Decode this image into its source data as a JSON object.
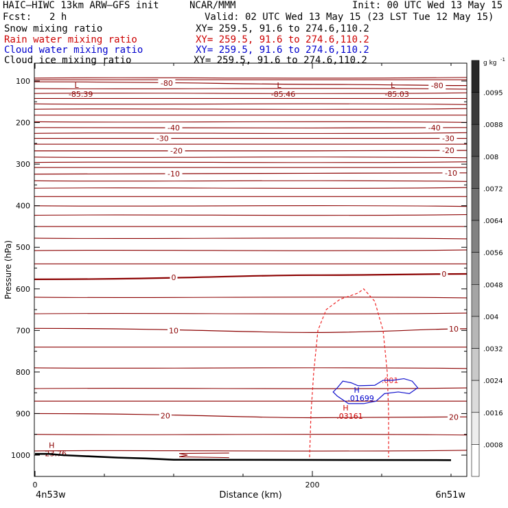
{
  "header": {
    "model": "HAIC–HIWC 13km ARW–GFS init",
    "org": "NCAR/MMM",
    "init": "Init: 00 UTC Wed 13 May 15",
    "fcst_label": "Fcst:",
    "fcst_value": "2 h",
    "valid": "Valid: 02 UTC Wed 13 May 15 (23 LST Tue 12 May 15)",
    "fields": [
      {
        "name": "Snow mixing ratio",
        "xy": "XY= 259.5, 91.6 to 274.6,110.2",
        "color": "#000000"
      },
      {
        "name": "Rain water mixing ratio",
        "xy": "XY= 259.5, 91.6 to 274.6,110.2",
        "color": "#cc0000"
      },
      {
        "name": "Cloud water mixing ratio",
        "xy": "XY= 259.5, 91.6 to 274.6,110.2",
        "color": "#0000cc"
      },
      {
        "name": "Cloud ice mixing ratio",
        "xy": "XY= 259.5, 91.6 to 274.6,110.2",
        "color": "#000000"
      }
    ]
  },
  "chart_data": {
    "type": "line",
    "xlabel": "Distance (km)",
    "ylabel": "Pressure (hPa)",
    "x_ticks": [
      0,
      200
    ],
    "x_ticklabels": [
      "0",
      "200"
    ],
    "xlim": [
      0,
      300
    ],
    "y_ticks": [
      100,
      200,
      300,
      400,
      500,
      600,
      700,
      800,
      900,
      1000
    ],
    "ylim": [
      1050,
      70
    ],
    "left_endpoint": "4n53w",
    "right_endpoint": "6n51w",
    "colors": {
      "temperature": "#8b0000",
      "rain": "#ee2222",
      "cloud_water": "#1010cc",
      "terrain": "#000000"
    },
    "temperature_contours": [
      {
        "label": "-80",
        "p": [
          102,
          108,
          111
        ],
        "label_x": [
          95,
          290
        ]
      },
      {
        "label": "-40",
        "p": [
          212,
          213,
          212
        ],
        "label_x": [
          100,
          288
        ]
      },
      {
        "label": "-30",
        "p": [
          238,
          238,
          238
        ],
        "label_x": [
          92,
          298
        ]
      },
      {
        "label": "-20",
        "p": [
          268,
          268,
          267
        ],
        "label_x": [
          102,
          298
        ]
      },
      {
        "label": "-10",
        "p": [
          324,
          322,
          321
        ],
        "label_x": [
          100,
          300
        ]
      },
      {
        "label": "0",
        "p": [
          577,
          567,
          564
        ],
        "label_x": [
          100,
          295
        ]
      },
      {
        "label": "10",
        "p": [
          695,
          705,
          696
        ],
        "label_x": [
          100,
          302
        ]
      },
      {
        "label": "20",
        "p": [
          900,
          910,
          908
        ],
        "label_x": [
          94,
          302
        ]
      }
    ],
    "extra_isotherms_hpa": [
      93,
      97,
      118,
      130,
      142,
      155,
      168,
      182,
      198,
      226,
      252,
      283,
      296,
      308,
      340,
      358,
      378,
      400,
      423,
      450,
      478,
      508,
      540,
      620,
      660,
      740,
      790,
      840,
      870,
      950,
      990
    ],
    "lows": [
      {
        "label": "L",
        "value": "-85.39",
        "x": 30,
        "p": 95
      },
      {
        "label": "L",
        "value": "-85.46",
        "x": 176,
        "p": 95
      },
      {
        "label": "L",
        "value": "-85.03",
        "x": 258,
        "p": 95
      }
    ],
    "highs": [
      {
        "label": "H",
        "value": "23.76",
        "x": 12,
        "p": 983,
        "color": "#8b0000"
      },
      {
        "label": "H",
        "value": ".03161",
        "x": 224,
        "p": 893,
        "color": "#cc0000"
      },
      {
        "label": "H",
        "value": ".01699",
        "x": 232,
        "p": 850,
        "color": "#0000cc"
      }
    ],
    "rain_contour": {
      "value": ".001",
      "x": [
        198,
        199,
        201,
        204,
        210,
        220,
        233,
        237,
        245,
        251,
        254,
        255,
        255
      ],
      "p": [
        1005,
        900,
        800,
        700,
        650,
        625,
        610,
        600,
        630,
        700,
        800,
        900,
        1005
      ]
    },
    "cloud_water_contour": {
      "points": [
        [
          218,
          838
        ],
        [
          222,
          822
        ],
        [
          228,
          826
        ],
        [
          233,
          833
        ],
        [
          245,
          832
        ],
        [
          251,
          820
        ],
        [
          258,
          820
        ],
        [
          266,
          816
        ],
        [
          272,
          822
        ],
        [
          276,
          838
        ],
        [
          270,
          852
        ],
        [
          262,
          848
        ],
        [
          252,
          852
        ],
        [
          246,
          870
        ],
        [
          237,
          876
        ],
        [
          226,
          876
        ],
        [
          218,
          858
        ],
        [
          215,
          848
        ]
      ]
    },
    "terrain": {
      "x": [
        0,
        10,
        20,
        40,
        60,
        80,
        100,
        300
      ],
      "p": [
        997,
        997,
        1000,
        1003,
        1006,
        1008,
        1011,
        1012
      ]
    },
    "colorbar": {
      "unit": "g kg",
      "unit_exp": "-1",
      "levels": [
        ".0095",
        ".0088",
        ".008",
        ".0072",
        ".0064",
        ".0056",
        ".0048",
        ".004",
        ".0032",
        ".0024",
        ".0016",
        ".0008"
      ]
    }
  }
}
